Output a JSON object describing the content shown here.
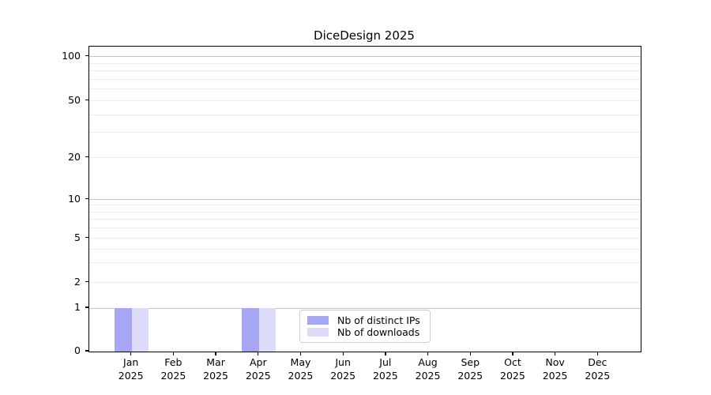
{
  "chart_data": {
    "type": "bar",
    "title": "DiceDesign 2025",
    "categories": [
      "Jan",
      "Feb",
      "Mar",
      "Apr",
      "May",
      "Jun",
      "Jul",
      "Aug",
      "Sep",
      "Oct",
      "Nov",
      "Dec"
    ],
    "category_year": "2025",
    "series": [
      {
        "name": "Nb of distinct IPs",
        "color": "#a6a6f5",
        "values": [
          1,
          0,
          0,
          1,
          0,
          0,
          0,
          0,
          0,
          0,
          0,
          0
        ]
      },
      {
        "name": "Nb of downloads",
        "color": "#dcdcfa",
        "values": [
          1,
          0,
          0,
          1,
          0,
          0,
          0,
          0,
          0,
          0,
          0,
          0
        ]
      }
    ],
    "yaxis": {
      "scale": "asinh (linear 0-1, logarithmic above 1)",
      "ticks": [
        0,
        1,
        2,
        5,
        10,
        20,
        50,
        100
      ],
      "major_gridlines": [
        1,
        10,
        100
      ],
      "minor_gridlines": [
        2,
        3,
        4,
        5,
        6,
        7,
        8,
        9,
        20,
        30,
        40,
        50,
        60,
        70,
        80,
        90
      ],
      "ylim": [
        0,
        105
      ]
    },
    "xaxis": {
      "label_format": "month over year, two lines"
    },
    "legend": {
      "position": "lower center inside plot"
    },
    "colors": {
      "major_grid": "#c3c3c3",
      "minor_grid": "#ebebeb",
      "spine": "#000000",
      "background": "#ffffff"
    },
    "grid": true
  }
}
